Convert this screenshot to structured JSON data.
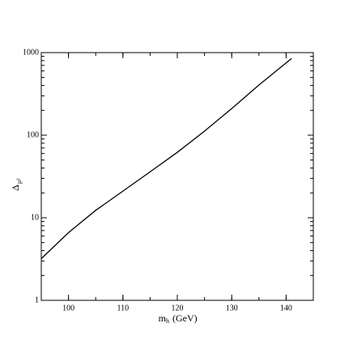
{
  "chart_data": {
    "type": "line",
    "x": [
      95,
      100,
      105,
      110,
      115,
      120,
      125,
      130,
      135,
      141
    ],
    "series": [
      {
        "color": "#000000",
        "values": [
          3.2,
          6.6,
          12.3,
          21,
          36,
          62,
          112,
          210,
          405,
          850
        ]
      }
    ],
    "xlim": [
      95,
      145
    ],
    "xticks": [
      100,
      110,
      120,
      130,
      140
    ],
    "ylim": [
      1,
      1000
    ],
    "yticks": [
      1,
      10,
      100,
      1000
    ],
    "ylog": true,
    "xlabel": "m",
    "xlabel_sub": "h",
    "xlabel_unit": "(GeV)",
    "ylabel": "Δ",
    "ylabel_sub": "μ²"
  }
}
